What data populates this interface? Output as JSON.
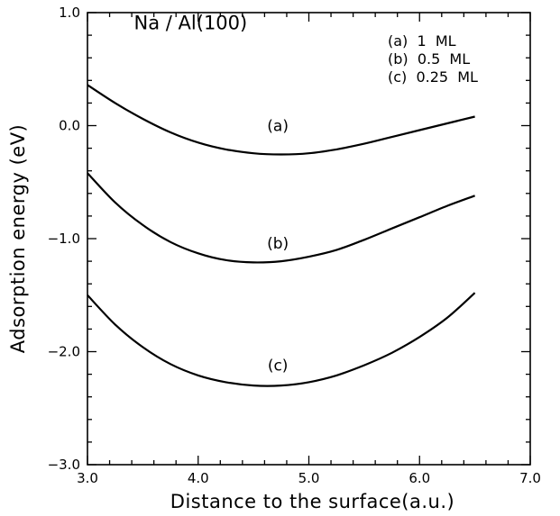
{
  "chart_data": {
    "type": "line",
    "title": "Na / Al(100)",
    "xlabel": "Distance to the surface(a.u.)",
    "ylabel": "Adsorption energy (eV)",
    "xlim": [
      3.0,
      7.0
    ],
    "ylim": [
      -3.0,
      1.0
    ],
    "xticks": [
      "3.0",
      "4.0",
      "5.0",
      "6.0",
      "7.0"
    ],
    "yticks": [
      "1.0",
      "0.0",
      "-1.0",
      "-2.0",
      "-3.0"
    ],
    "grid": false,
    "legend": {
      "placement": "top-right",
      "entries": [
        "(a)  1  ML",
        "(b)  0.5  ML",
        "(c)  0.25  ML"
      ]
    },
    "series": [
      {
        "name": "(a)",
        "x": [
          3.0,
          3.25,
          3.5,
          3.75,
          4.0,
          4.25,
          4.5,
          4.75,
          5.0,
          5.25,
          5.5,
          5.75,
          6.0,
          6.25,
          6.5
        ],
        "y": [
          0.36,
          0.2,
          0.06,
          -0.06,
          -0.15,
          -0.21,
          -0.245,
          -0.255,
          -0.245,
          -0.21,
          -0.16,
          -0.1,
          -0.04,
          0.02,
          0.08
        ]
      },
      {
        "name": "(b)",
        "x": [
          3.0,
          3.25,
          3.5,
          3.75,
          4.0,
          4.25,
          4.5,
          4.75,
          5.0,
          5.25,
          5.5,
          5.75,
          6.0,
          6.25,
          6.5
        ],
        "y": [
          -0.42,
          -0.68,
          -0.88,
          -1.03,
          -1.13,
          -1.19,
          -1.21,
          -1.2,
          -1.16,
          -1.1,
          -1.01,
          -0.91,
          -0.81,
          -0.71,
          -0.62
        ]
      },
      {
        "name": "(c)",
        "x": [
          3.0,
          3.25,
          3.5,
          3.75,
          4.0,
          4.25,
          4.5,
          4.75,
          5.0,
          5.25,
          5.5,
          5.75,
          6.0,
          6.25,
          6.5
        ],
        "y": [
          -1.5,
          -1.76,
          -1.96,
          -2.11,
          -2.21,
          -2.27,
          -2.3,
          -2.3,
          -2.27,
          -2.21,
          -2.12,
          -2.01,
          -1.87,
          -1.7,
          -1.48
        ]
      }
    ],
    "curve_labels": [
      {
        "text": "(a)",
        "x": 4.72,
        "y": 0.0
      },
      {
        "text": "(b)",
        "x": 4.72,
        "y": -1.04
      },
      {
        "text": "(c)",
        "x": 4.72,
        "y": -2.12
      }
    ],
    "title_position": {
      "x": 3.42,
      "y": 0.91
    }
  }
}
